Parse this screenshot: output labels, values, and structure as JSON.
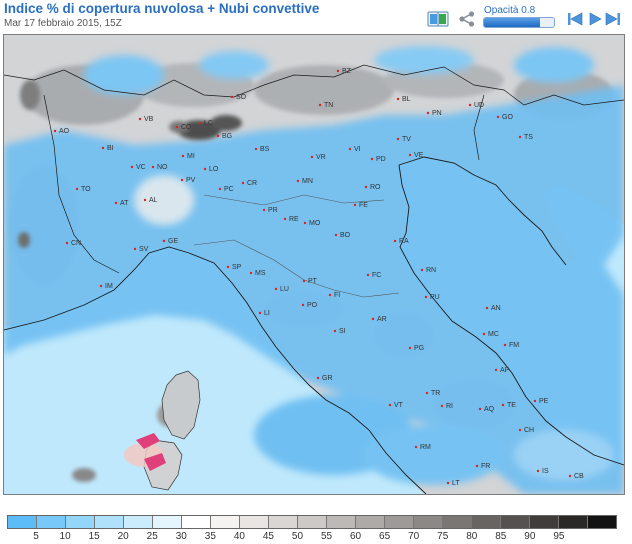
{
  "header": {
    "title": "Indice % di copertura nuvolosa + Nubi convettive",
    "subtitle": "Mar 17 febbraio 2015, 15Z"
  },
  "toolbar": {
    "opacity_label": "Opacità 0.8",
    "opacity_value": 0.8,
    "icons": [
      "book-icon",
      "share-icon",
      "skip-back-icon",
      "play-icon",
      "skip-forward-icon"
    ]
  },
  "map": {
    "labels": [
      {
        "id": "BZ",
        "text": "BZ"
      },
      {
        "id": "TN",
        "text": "TN"
      },
      {
        "id": "BL",
        "text": "BL"
      },
      {
        "id": "PN",
        "text": "PN"
      },
      {
        "id": "UD",
        "text": "UD"
      },
      {
        "id": "GO",
        "text": "GO"
      },
      {
        "id": "TS",
        "text": "TS"
      },
      {
        "id": "SO",
        "text": "SO"
      },
      {
        "id": "VB",
        "text": "VB"
      },
      {
        "id": "CO",
        "text": "CO"
      },
      {
        "id": "LC",
        "text": "LC"
      },
      {
        "id": "BG",
        "text": "BG"
      },
      {
        "id": "BS",
        "text": "BS"
      },
      {
        "id": "VR",
        "text": "VR"
      },
      {
        "id": "VI",
        "text": "VI"
      },
      {
        "id": "TV",
        "text": "TV"
      },
      {
        "id": "PD",
        "text": "PD"
      },
      {
        "id": "VE",
        "text": "VE"
      },
      {
        "id": "AO",
        "text": "AO"
      },
      {
        "id": "BI",
        "text": "BI"
      },
      {
        "id": "MI",
        "text": "MI"
      },
      {
        "id": "VC",
        "text": "VC"
      },
      {
        "id": "NO",
        "text": "NO"
      },
      {
        "id": "LO",
        "text": "LO"
      },
      {
        "id": "PV",
        "text": "PV"
      },
      {
        "id": "CR",
        "text": "CR"
      },
      {
        "id": "MN",
        "text": "MN"
      },
      {
        "id": "RO",
        "text": "RO"
      },
      {
        "id": "PC",
        "text": "PC"
      },
      {
        "id": "FE",
        "text": "FE"
      },
      {
        "id": "TO",
        "text": "TO"
      },
      {
        "id": "AT",
        "text": "AT"
      },
      {
        "id": "AL",
        "text": "AL"
      },
      {
        "id": "PR",
        "text": "PR"
      },
      {
        "id": "RE",
        "text": "RE"
      },
      {
        "id": "MO",
        "text": "MO"
      },
      {
        "id": "BO",
        "text": "BO"
      },
      {
        "id": "RA",
        "text": "RA"
      },
      {
        "id": "CN",
        "text": "CN"
      },
      {
        "id": "GE",
        "text": "GE"
      },
      {
        "id": "SV",
        "text": "SV"
      },
      {
        "id": "IM",
        "text": "IM"
      },
      {
        "id": "SP",
        "text": "SP"
      },
      {
        "id": "MS",
        "text": "MS"
      },
      {
        "id": "LU",
        "text": "LU"
      },
      {
        "id": "PT",
        "text": "PT"
      },
      {
        "id": "FC",
        "text": "FC"
      },
      {
        "id": "RN",
        "text": "RN"
      },
      {
        "id": "PU",
        "text": "PU"
      },
      {
        "id": "FI",
        "text": "FI"
      },
      {
        "id": "PO",
        "text": "PO"
      },
      {
        "id": "LI",
        "text": "LI"
      },
      {
        "id": "AR",
        "text": "AR"
      },
      {
        "id": "AN",
        "text": "AN"
      },
      {
        "id": "MC",
        "text": "MC"
      },
      {
        "id": "SI",
        "text": "SI"
      },
      {
        "id": "PG",
        "text": "PG"
      },
      {
        "id": "FM",
        "text": "FM"
      },
      {
        "id": "AP",
        "text": "AP"
      },
      {
        "id": "GR",
        "text": "GR"
      },
      {
        "id": "TE",
        "text": "TE"
      },
      {
        "id": "PE",
        "text": "PE"
      },
      {
        "id": "TR",
        "text": "TR"
      },
      {
        "id": "RI",
        "text": "RI"
      },
      {
        "id": "VT",
        "text": "VT"
      },
      {
        "id": "AQ",
        "text": "AQ"
      },
      {
        "id": "CH",
        "text": "CH"
      },
      {
        "id": "RM",
        "text": "RM"
      },
      {
        "id": "FR",
        "text": "FR"
      },
      {
        "id": "IS",
        "text": "IS"
      },
      {
        "id": "CB",
        "text": "CB"
      },
      {
        "id": "LT",
        "text": "LT"
      }
    ]
  },
  "legend": {
    "colors": [
      "#5cbcf8",
      "#78c9f9",
      "#94d5fa",
      "#b0e1fb",
      "#cbecfc",
      "#e4f5fd",
      "#ffffff",
      "#f5f3f1",
      "#e8e5e2",
      "#dad6d3",
      "#cdc9c6",
      "#bdb9b6",
      "#aeaaa7",
      "#9e9a97",
      "#8c8885",
      "#7a7673",
      "#686462",
      "#545150",
      "#3f3c3b",
      "#2a2827",
      "#141313"
    ],
    "labels": [
      "5",
      "10",
      "15",
      "20",
      "25",
      "30",
      "35",
      "40",
      "45",
      "50",
      "55",
      "60",
      "65",
      "70",
      "75",
      "80",
      "85",
      "90",
      "95"
    ]
  }
}
